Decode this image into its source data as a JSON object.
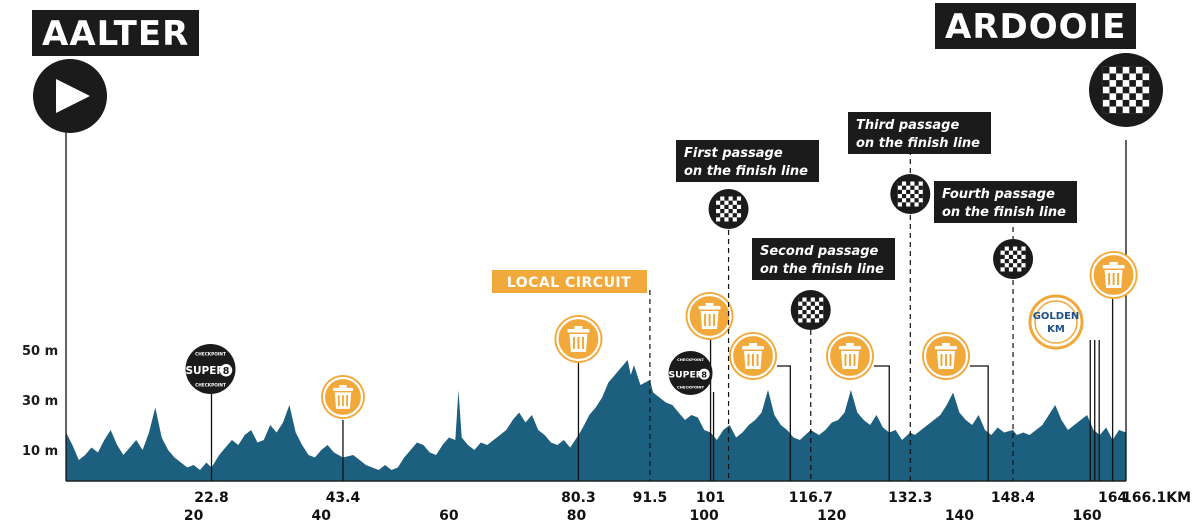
{
  "chart_data": {
    "type": "area",
    "start_label": "AALTER",
    "finish_label": "ARDOOIE",
    "y_tick_labels": [
      "50 m",
      "30 m",
      "10 m"
    ],
    "y_ticks": [
      50,
      30,
      10
    ],
    "x_ticks": [
      20,
      40,
      60,
      80,
      100,
      120,
      140,
      160
    ],
    "x_tick_labels": [
      "20",
      "40",
      "60",
      "80",
      "100",
      "120",
      "140",
      "160"
    ],
    "xlim": [
      0,
      166.1
    ],
    "ylim": [
      0,
      60
    ],
    "colors": {
      "profile": "#1d5f7e",
      "accent": "#f2a93b",
      "dark": "#1b1b1b"
    },
    "profile": [
      [
        0,
        17
      ],
      [
        1,
        12
      ],
      [
        2,
        6
      ],
      [
        3,
        8
      ],
      [
        4,
        11
      ],
      [
        5,
        9
      ],
      [
        6,
        14
      ],
      [
        7,
        18
      ],
      [
        8,
        12
      ],
      [
        9,
        8
      ],
      [
        10,
        11
      ],
      [
        11,
        14
      ],
      [
        12,
        10
      ],
      [
        13,
        17
      ],
      [
        14,
        27
      ],
      [
        15,
        15
      ],
      [
        16,
        10
      ],
      [
        17,
        7
      ],
      [
        18,
        5
      ],
      [
        19,
        3
      ],
      [
        20,
        4
      ],
      [
        21,
        2
      ],
      [
        22,
        5
      ],
      [
        22.8,
        3
      ],
      [
        24,
        8
      ],
      [
        25,
        11
      ],
      [
        26,
        14
      ],
      [
        27,
        12
      ],
      [
        28,
        16
      ],
      [
        29,
        18
      ],
      [
        30,
        13
      ],
      [
        31,
        14
      ],
      [
        32,
        20
      ],
      [
        33,
        17
      ],
      [
        34,
        21
      ],
      [
        35,
        28
      ],
      [
        36,
        17
      ],
      [
        37,
        12
      ],
      [
        38,
        8
      ],
      [
        39,
        7
      ],
      [
        40,
        10
      ],
      [
        41,
        12
      ],
      [
        42,
        9
      ],
      [
        43.4,
        7
      ],
      [
        45,
        8
      ],
      [
        46,
        6
      ],
      [
        47,
        4
      ],
      [
        48,
        3
      ],
      [
        49,
        2
      ],
      [
        50,
        4
      ],
      [
        51,
        2
      ],
      [
        52,
        3
      ],
      [
        53,
        7
      ],
      [
        54,
        10
      ],
      [
        55,
        13
      ],
      [
        56,
        12
      ],
      [
        57,
        9
      ],
      [
        58,
        8
      ],
      [
        59,
        12
      ],
      [
        60,
        15
      ],
      [
        61,
        14
      ],
      [
        61.5,
        34
      ],
      [
        62,
        15
      ],
      [
        63,
        12
      ],
      [
        64,
        10
      ],
      [
        65,
        13
      ],
      [
        66,
        12
      ],
      [
        67,
        14
      ],
      [
        68,
        16
      ],
      [
        69,
        18
      ],
      [
        70,
        22
      ],
      [
        71,
        25
      ],
      [
        72,
        21
      ],
      [
        73,
        24
      ],
      [
        74,
        18
      ],
      [
        75,
        16
      ],
      [
        76,
        13
      ],
      [
        77,
        12
      ],
      [
        78,
        14
      ],
      [
        79,
        11
      ],
      [
        80.3,
        16
      ],
      [
        81,
        19
      ],
      [
        82,
        24
      ],
      [
        83,
        27
      ],
      [
        84,
        31
      ],
      [
        85,
        37
      ],
      [
        86,
        40
      ],
      [
        87,
        43
      ],
      [
        88,
        46
      ],
      [
        88.5,
        40
      ],
      [
        89,
        44
      ],
      [
        90,
        36
      ],
      [
        91.5,
        38
      ],
      [
        92,
        33
      ],
      [
        93,
        31
      ],
      [
        94,
        29
      ],
      [
        95,
        28
      ],
      [
        96,
        25
      ],
      [
        97,
        22
      ],
      [
        98,
        24
      ],
      [
        99,
        23
      ],
      [
        100,
        18
      ],
      [
        101,
        17
      ],
      [
        102,
        14
      ],
      [
        103,
        18
      ],
      [
        104,
        20
      ],
      [
        105,
        15
      ],
      [
        106,
        17
      ],
      [
        107,
        20
      ],
      [
        108,
        22
      ],
      [
        109,
        25
      ],
      [
        110,
        34
      ],
      [
        111,
        24
      ],
      [
        112,
        20
      ],
      [
        113,
        18
      ],
      [
        114,
        15
      ],
      [
        115,
        14
      ],
      [
        116.7,
        18
      ],
      [
        118,
        16
      ],
      [
        119,
        18
      ],
      [
        120,
        21
      ],
      [
        121,
        22
      ],
      [
        122,
        25
      ],
      [
        123,
        34
      ],
      [
        124,
        25
      ],
      [
        125,
        22
      ],
      [
        126,
        20
      ],
      [
        127,
        24
      ],
      [
        128,
        19
      ],
      [
        129,
        17
      ],
      [
        130,
        18
      ],
      [
        131,
        14
      ],
      [
        132.3,
        17
      ],
      [
        133,
        16
      ],
      [
        134,
        18
      ],
      [
        135,
        20
      ],
      [
        136,
        22
      ],
      [
        137,
        24
      ],
      [
        138,
        28
      ],
      [
        139,
        33
      ],
      [
        140,
        25
      ],
      [
        141,
        22
      ],
      [
        142,
        20
      ],
      [
        143,
        24
      ],
      [
        144,
        18
      ],
      [
        145,
        16
      ],
      [
        146,
        19
      ],
      [
        147,
        17
      ],
      [
        148.4,
        18
      ],
      [
        149,
        16
      ],
      [
        150,
        17
      ],
      [
        151,
        16
      ],
      [
        152,
        18
      ],
      [
        153,
        20
      ],
      [
        154,
        24
      ],
      [
        155,
        28
      ],
      [
        156,
        22
      ],
      [
        157,
        18
      ],
      [
        158,
        20
      ],
      [
        159,
        22
      ],
      [
        160,
        24
      ],
      [
        161,
        18
      ],
      [
        162,
        16
      ],
      [
        163,
        19
      ],
      [
        164,
        14
      ],
      [
        165,
        18
      ],
      [
        166.1,
        17
      ]
    ],
    "km_markers": [
      {
        "km": 22.8,
        "label": "22.8",
        "icon": "checkpoint-super8-icon"
      },
      {
        "km": 43.4,
        "label": "43.4",
        "icon": "waste-bin-icon"
      },
      {
        "km": 80.3,
        "label": "80.3",
        "icon": "waste-bin-icon"
      },
      {
        "km": 91.5,
        "label": "91.5",
        "icon": "local-circuit-label"
      },
      {
        "km": 101,
        "label": "101",
        "icon": "checkpoint-super8-icon"
      },
      {
        "km": 116.7,
        "label": "116.7",
        "icon": "checkered-flag-icon"
      },
      {
        "km": 132.3,
        "label": "132.3",
        "icon": "checkered-flag-icon"
      },
      {
        "km": 148.4,
        "label": "148.4",
        "icon": "checkered-flag-icon"
      },
      {
        "km": 164,
        "label": "164",
        "icon": "waste-bin-icon"
      },
      {
        "km": 166.1,
        "label": "166.1KM",
        "icon": "finish-flag-icon"
      }
    ],
    "annotations": {
      "local_circuit": "LOCAL CIRCUIT",
      "first_passage": [
        "First passage",
        "on the finish line"
      ],
      "second_passage": [
        "Second passage",
        "on the finish line"
      ],
      "third_passage": [
        "Third passage",
        "on the finish line"
      ],
      "fourth_passage": [
        "Fourth passage",
        "on the finish line"
      ],
      "checkpoint_top": "CHECKPOINT",
      "checkpoint_main": "SUPER",
      "checkpoint_num": "8",
      "golden_km": [
        "GOLDEN",
        "KM"
      ]
    }
  }
}
